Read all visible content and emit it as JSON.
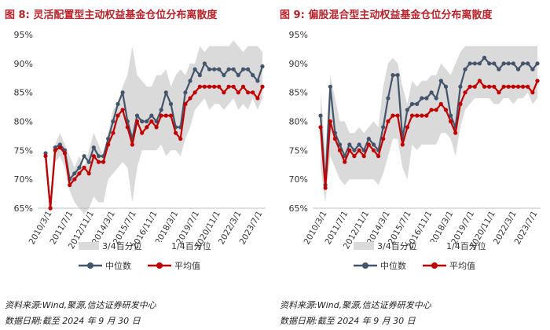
{
  "figures": [
    {
      "label": "图 8:",
      "title": "灵活配置型主动权益基金仓位分布离散度"
    },
    {
      "label": "图 9:",
      "title": "偏股混合型主动权益基金仓位分布离散度"
    }
  ],
  "source_text": "资料来源:Wind,聚源,信达证券研发中心",
  "date_text": "数据日期:截至 2024 年 9 月 30 日",
  "chart_data": [
    {
      "type": "area",
      "title": "灵活配置型主动权益基金仓位分布离散度",
      "ylim": [
        65,
        95
      ],
      "y_ticks": [
        "65%",
        "70%",
        "75%",
        "80%",
        "85%",
        "90%",
        "95%"
      ],
      "x_tick_labels": [
        "2010/3/1",
        "2011/7/1",
        "2012/11/1",
        "2014/3/1",
        "2015/7/1",
        "2016/11/1",
        "2018/3/1",
        "2019/7/1",
        "2020/11/1",
        "2022/3/1",
        "2023/7/1"
      ],
      "legend": [
        "3/4百分位",
        "1/4百分位",
        "中位数",
        "平均值"
      ],
      "series": [
        {
          "name": "3/4百分位",
          "color": "#dadada",
          "values": [
            76,
            66,
            76,
            78,
            76,
            74,
            72,
            74,
            72,
            75,
            78,
            76,
            74,
            78,
            82,
            83,
            86,
            88,
            93,
            88,
            87,
            86,
            86,
            88,
            88,
            89,
            86,
            88,
            89,
            88,
            90,
            90,
            93,
            92,
            93,
            93,
            93,
            93,
            93,
            94,
            93,
            92,
            93,
            93,
            93,
            92
          ]
        },
        {
          "name": "1/4百分位",
          "color": "#dadada",
          "values": [
            72,
            64,
            73,
            74,
            72,
            68,
            66,
            65,
            64,
            65,
            67,
            66,
            66,
            70,
            71,
            72,
            73,
            72,
            66,
            72,
            75,
            75,
            75,
            75,
            76,
            74,
            75,
            75,
            74,
            77,
            79,
            82,
            83,
            84,
            82,
            83,
            83,
            82,
            83,
            84,
            82,
            83,
            82,
            84,
            82,
            84
          ]
        },
        {
          "name": "中位数",
          "color": "#44546a",
          "values": [
            74.5,
            65,
            75.5,
            76,
            75,
            70,
            71,
            72,
            74,
            73,
            75.5,
            74,
            74,
            77,
            80,
            83,
            85,
            80,
            77,
            81,
            80,
            80,
            81,
            80,
            82,
            85,
            83,
            79,
            79,
            85,
            87,
            89,
            88,
            90,
            89,
            89,
            89,
            88,
            89,
            89,
            88,
            89,
            89,
            88,
            87,
            89.5
          ]
        },
        {
          "name": "平均值",
          "color": "#c00000",
          "values": [
            74,
            65,
            75,
            75.5,
            74.5,
            69,
            70,
            71,
            72,
            71,
            74,
            73,
            73,
            76,
            78,
            81,
            82,
            79,
            76,
            80,
            78,
            79,
            80,
            79,
            81,
            81,
            81,
            78,
            77,
            83,
            84,
            85,
            86,
            86,
            86,
            86,
            86,
            85,
            86,
            86,
            85,
            86,
            85,
            85,
            84,
            86
          ]
        }
      ]
    },
    {
      "type": "area",
      "title": "偏股混合型主动权益基金仓位分布离散度",
      "ylim": [
        65,
        95
      ],
      "y_ticks": [
        "65%",
        "70%",
        "75%",
        "80%",
        "85%",
        "90%",
        "95%"
      ],
      "x_tick_labels": [
        "2010/3/1",
        "2011/7/1",
        "2012/11/1",
        "2014/3/1",
        "2015/7/1",
        "2016/11/1",
        "2018/3/1",
        "2019/7/1",
        "2020/11/1",
        "2022/3/1",
        "2023/7/1"
      ],
      "legend": [
        "3/4百分位",
        "1/4百分位",
        "中位数",
        "平均值"
      ],
      "series": [
        {
          "name": "3/4百分位",
          "color": "#dadada",
          "values": [
            85,
            75,
            88,
            84,
            80,
            80,
            78,
            78,
            79,
            78,
            79,
            80,
            79,
            86,
            90,
            91,
            90,
            86,
            83,
            87,
            86,
            87,
            87,
            88,
            88,
            90,
            89,
            88,
            90,
            92,
            93,
            93,
            93,
            93,
            93,
            93,
            93,
            93,
            93,
            93,
            93,
            93,
            93,
            93,
            93,
            93
          ]
        },
        {
          "name": "1/4百分位",
          "color": "#dadada",
          "values": [
            72,
            66,
            74,
            72,
            70,
            69,
            70,
            70,
            70,
            70,
            70,
            70,
            69,
            71,
            74,
            77,
            77,
            72,
            70,
            76,
            75,
            76,
            76,
            76,
            76,
            78,
            78,
            77,
            74,
            79,
            82,
            83,
            84,
            84,
            84,
            84,
            83,
            83,
            84,
            84,
            83,
            84,
            84,
            85,
            83,
            84
          ]
        },
        {
          "name": "中位数",
          "color": "#44546a",
          "values": [
            81,
            69,
            86,
            78,
            76,
            74,
            76,
            75,
            76,
            75,
            77,
            76,
            75,
            79,
            84,
            88,
            88,
            77,
            82,
            83,
            83,
            84,
            84,
            85,
            84,
            87,
            86,
            81,
            79,
            86,
            89,
            90,
            90,
            90,
            91,
            90,
            90,
            89,
            90,
            90,
            90,
            89,
            90,
            90,
            89,
            90
          ]
        },
        {
          "name": "平均值",
          "color": "#c00000",
          "values": [
            79,
            68.5,
            80,
            77,
            75,
            73,
            75,
            74,
            75,
            74,
            76,
            75,
            74,
            77,
            80,
            81,
            81,
            76,
            79,
            81,
            81,
            81,
            81,
            82,
            82,
            83,
            82,
            80,
            78,
            83,
            85,
            86,
            86,
            87,
            86,
            86,
            86,
            85,
            86,
            86,
            86,
            86,
            86,
            86,
            85,
            87
          ]
        }
      ]
    }
  ]
}
